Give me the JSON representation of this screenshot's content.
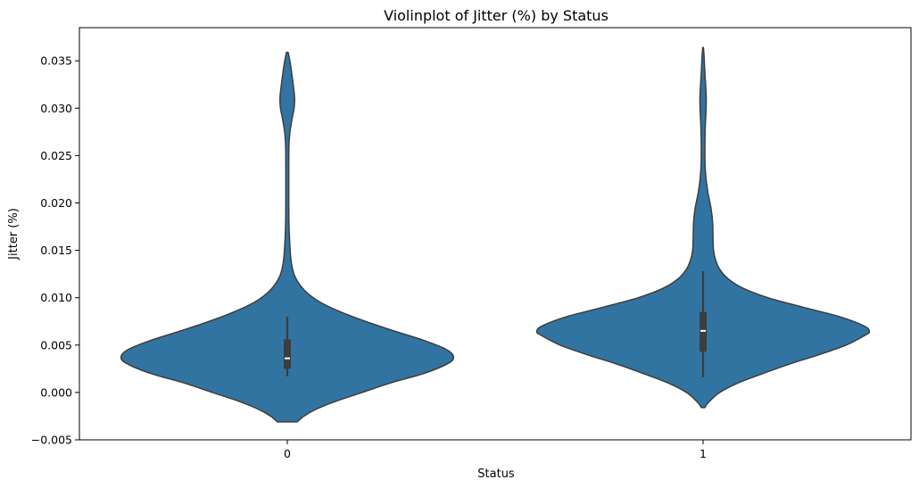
{
  "chart_data": {
    "type": "violin",
    "title": "Violinplot of Jitter (%) by Status",
    "xlabel": "Status",
    "ylabel": "Jitter (%)",
    "categories": [
      "0",
      "1"
    ],
    "ylim": [
      -0.005,
      0.0385
    ],
    "yticks": [
      -0.005,
      0.0,
      0.005,
      0.01,
      0.015,
      0.02,
      0.025,
      0.03,
      0.035
    ],
    "ytick_labels": [
      "−0.005",
      "0.000",
      "0.005",
      "0.010",
      "0.015",
      "0.020",
      "0.025",
      "0.030",
      "0.035"
    ],
    "grid": false,
    "legend": "none",
    "colors": {
      "fill": "#3274a1",
      "edge": "#3d3d3d",
      "inner_box": "#3d3d3d",
      "median": "#ffffff"
    },
    "violins": [
      {
        "category": "0",
        "min_extent": -0.0031,
        "max_extent": 0.0359,
        "whisker_low": 0.0017,
        "q1": 0.0025,
        "median": 0.0036,
        "q3": 0.0056,
        "whisker_high": 0.008,
        "density_profile": [
          [
            -0.0031,
            0.06
          ],
          [
            -0.0025,
            0.1
          ],
          [
            -0.0018,
            0.17
          ],
          [
            -0.001,
            0.28
          ],
          [
            0.0,
            0.45
          ],
          [
            0.001,
            0.62
          ],
          [
            0.002,
            0.82
          ],
          [
            0.003,
            0.96
          ],
          [
            0.0037,
            1.0
          ],
          [
            0.0045,
            0.96
          ],
          [
            0.0055,
            0.82
          ],
          [
            0.0065,
            0.64
          ],
          [
            0.0075,
            0.47
          ],
          [
            0.0085,
            0.32
          ],
          [
            0.0095,
            0.2
          ],
          [
            0.0105,
            0.12
          ],
          [
            0.0115,
            0.07
          ],
          [
            0.0125,
            0.04
          ],
          [
            0.014,
            0.022
          ],
          [
            0.016,
            0.014
          ],
          [
            0.018,
            0.01
          ],
          [
            0.02,
            0.009
          ],
          [
            0.022,
            0.009
          ],
          [
            0.024,
            0.009
          ],
          [
            0.026,
            0.01
          ],
          [
            0.0275,
            0.016
          ],
          [
            0.029,
            0.03
          ],
          [
            0.03,
            0.041
          ],
          [
            0.031,
            0.044
          ],
          [
            0.032,
            0.039
          ],
          [
            0.0335,
            0.028
          ],
          [
            0.0345,
            0.02
          ],
          [
            0.0353,
            0.012
          ],
          [
            0.0359,
            0.005
          ]
        ]
      },
      {
        "category": "1",
        "min_extent": -0.0016,
        "max_extent": 0.0364,
        "whisker_low": 0.0016,
        "q1": 0.0043,
        "median": 0.0065,
        "q3": 0.0085,
        "whisker_high": 0.0128,
        "density_profile": [
          [
            -0.0016,
            0.01
          ],
          [
            -0.001,
            0.035
          ],
          [
            0.0,
            0.1
          ],
          [
            0.001,
            0.21
          ],
          [
            0.002,
            0.36
          ],
          [
            0.003,
            0.52
          ],
          [
            0.004,
            0.7
          ],
          [
            0.005,
            0.86
          ],
          [
            0.006,
            0.97
          ],
          [
            0.0064,
            1.0
          ],
          [
            0.007,
            0.97
          ],
          [
            0.008,
            0.82
          ],
          [
            0.009,
            0.6
          ],
          [
            0.01,
            0.39
          ],
          [
            0.011,
            0.24
          ],
          [
            0.012,
            0.15
          ],
          [
            0.013,
            0.1
          ],
          [
            0.014,
            0.075
          ],
          [
            0.015,
            0.063
          ],
          [
            0.016,
            0.06
          ],
          [
            0.018,
            0.057
          ],
          [
            0.0195,
            0.047
          ],
          [
            0.021,
            0.03
          ],
          [
            0.0225,
            0.018
          ],
          [
            0.024,
            0.012
          ],
          [
            0.026,
            0.011
          ],
          [
            0.028,
            0.013
          ],
          [
            0.0295,
            0.017
          ],
          [
            0.031,
            0.019
          ],
          [
            0.0325,
            0.015
          ],
          [
            0.034,
            0.01
          ],
          [
            0.0355,
            0.006
          ],
          [
            0.0364,
            0.002
          ]
        ]
      }
    ]
  }
}
